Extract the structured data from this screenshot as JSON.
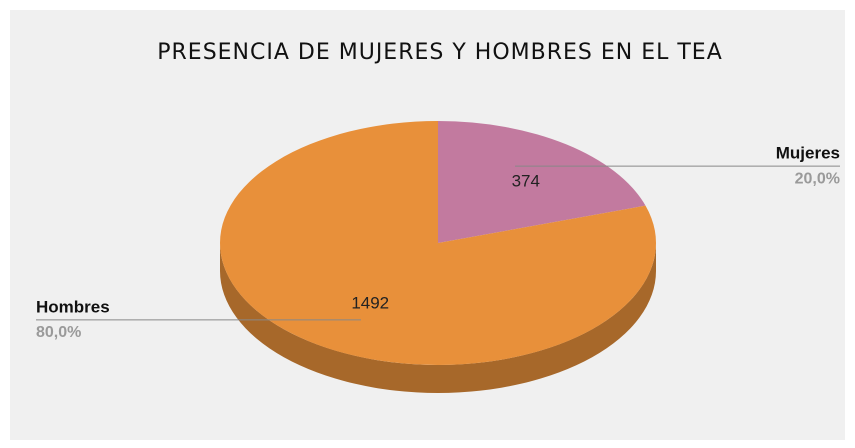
{
  "chart_data": {
    "type": "pie3d",
    "title": "PRESENCIA DE MUJERES Y HOMBRES EN EL TEA",
    "categories": [
      "Mujeres",
      "Hombres"
    ],
    "values": [
      374,
      1492
    ],
    "percent_labels": [
      "20,0%",
      "80,0%"
    ],
    "colors": [
      "#c27a9f",
      "#e8903a"
    ],
    "start_angle": -90
  }
}
